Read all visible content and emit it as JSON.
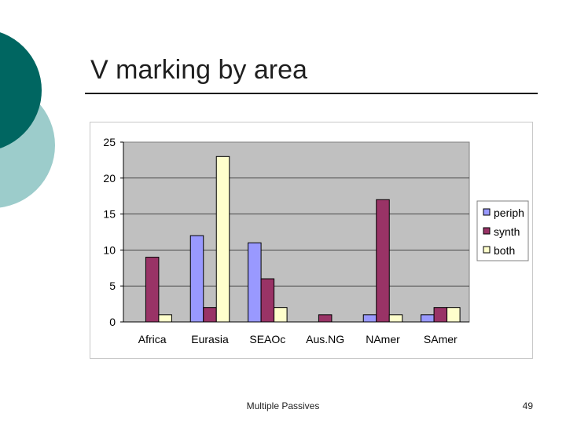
{
  "slide": {
    "title": "V marking by area",
    "footer": "Multiple Passives",
    "page_number": "49"
  },
  "colors": {
    "deco_dark": "#006661",
    "deco_light": "#9ccccb",
    "plot_bg": "#c0c0c0",
    "periph": "#9999ff",
    "synth": "#993366",
    "both": "#ffffcc"
  },
  "chart_data": {
    "type": "bar",
    "categories": [
      "Africa",
      "Eurasia",
      "SEAOc",
      "Aus.NG",
      "NAmer",
      "SAmer"
    ],
    "series": [
      {
        "name": "periph",
        "values": [
          0,
          12,
          11,
          0,
          1,
          1
        ]
      },
      {
        "name": "synth",
        "values": [
          9,
          2,
          6,
          1,
          17,
          2
        ]
      },
      {
        "name": "both",
        "values": [
          1,
          23,
          2,
          0,
          1,
          2
        ]
      }
    ],
    "ylim": [
      0,
      25
    ],
    "yticks": [
      "0",
      "5",
      "10",
      "15",
      "20",
      "25"
    ],
    "grid": true,
    "legend": "right",
    "xlabel": "",
    "ylabel": ""
  }
}
